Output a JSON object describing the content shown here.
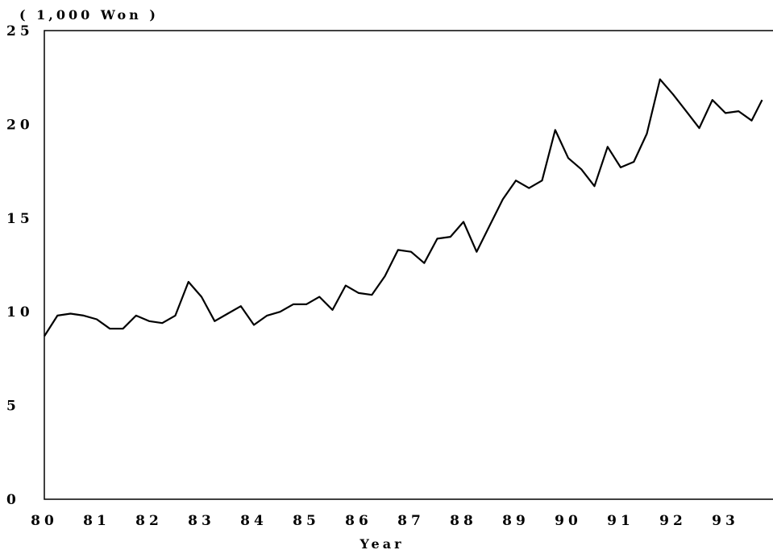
{
  "chart_data": {
    "type": "line",
    "unit_label": "( 1,000  Won )",
    "xlabel": "Year",
    "ylabel": "",
    "xlim": [
      80.0,
      93.7
    ],
    "ylim": [
      0,
      25
    ],
    "x_tick_labels": [
      "80",
      "81",
      "82",
      "83",
      "84",
      "85",
      "86",
      "87",
      "88",
      "89",
      "90",
      "91",
      "92",
      "93"
    ],
    "y_tick_labels": [
      "0",
      "5",
      "10",
      "15",
      "20",
      "25"
    ],
    "grid": false,
    "series": [
      {
        "x": [
          80.0,
          80.25,
          80.5,
          80.75,
          81.0,
          81.25,
          81.5,
          81.75,
          82.0,
          82.25,
          82.5,
          82.75,
          83.0,
          83.25,
          83.5,
          83.75,
          84.0,
          84.25,
          84.5,
          84.75,
          85.0,
          85.25,
          85.5,
          85.75,
          86.0,
          86.25,
          86.5,
          86.75,
          87.0,
          87.25,
          87.5,
          87.75,
          88.0,
          88.25,
          88.5,
          88.75,
          89.0,
          89.25,
          89.5,
          89.75,
          90.0,
          90.25,
          90.5,
          90.75,
          91.0,
          91.25,
          91.5,
          91.75,
          92.0,
          92.25,
          92.5,
          92.75,
          93.0,
          93.25,
          93.5,
          93.7
        ],
        "values": [
          8.7,
          9.8,
          9.9,
          9.8,
          9.6,
          9.1,
          9.1,
          9.8,
          9.5,
          9.4,
          9.8,
          11.6,
          10.8,
          9.5,
          9.9,
          10.3,
          9.3,
          9.8,
          10.0,
          10.4,
          10.4,
          10.8,
          10.1,
          11.4,
          11.0,
          10.9,
          11.9,
          13.3,
          13.2,
          12.6,
          13.9,
          14.0,
          14.8,
          13.2,
          14.6,
          16.0,
          17.0,
          16.6,
          17.0,
          19.7,
          18.2,
          17.6,
          16.7,
          18.8,
          17.7,
          18.0,
          19.5,
          22.4,
          21.6,
          20.7,
          19.8,
          21.3,
          20.6,
          20.7,
          20.2,
          21.3
        ]
      }
    ]
  }
}
